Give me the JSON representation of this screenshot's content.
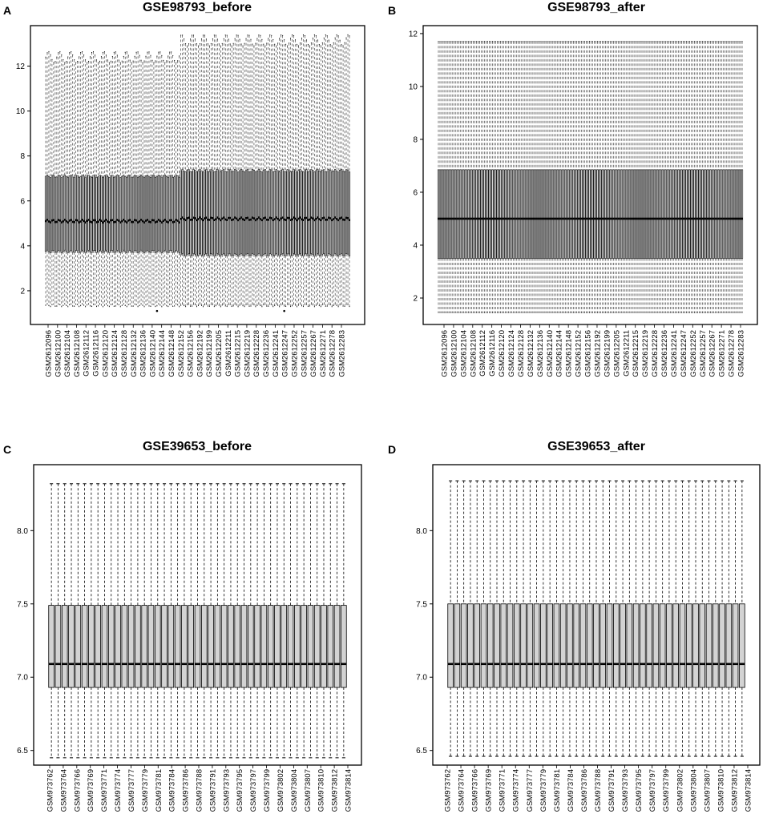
{
  "chart_data": [
    {
      "panel": "A",
      "type": "boxplot",
      "title": "GSE98793_before",
      "ylim": [
        0.5,
        13.8
      ],
      "yticks": [
        2,
        4,
        6,
        8,
        10,
        12
      ],
      "n_boxes": 192,
      "samples": [
        "GSM2612096",
        "GSM2612100",
        "GSM2612104",
        "GSM2612108",
        "GSM2612112",
        "GSM2612116",
        "GSM2612120",
        "GSM2612124",
        "GSM2612128",
        "GSM2612132",
        "GSM2612136",
        "GSM2612140",
        "GSM2612144",
        "GSM2612148",
        "GSM2612152",
        "GSM2612156",
        "GSM2612192",
        "GSM2612199",
        "GSM2612205",
        "GSM2612211",
        "GSM2612215",
        "GSM2612219",
        "GSM2612228",
        "GSM2612236",
        "GSM2612241",
        "GSM2612247",
        "GSM2612252",
        "GSM2612257",
        "GSM2612267",
        "GSM2612271",
        "GSM2612278",
        "GSM2612283"
      ],
      "shift_index": 85,
      "left_group": {
        "median": 5.1,
        "q1": 3.75,
        "q3": 7.1,
        "whisker_low": 1.35,
        "whisker_high": 12.4
      },
      "right_group": {
        "median": 5.2,
        "q1": 3.6,
        "q3": 7.35,
        "whisker_low": 1.35,
        "whisker_high": 13.15
      },
      "outlier_low": 1.1
    },
    {
      "panel": "B",
      "type": "boxplot",
      "title": "GSE98793_after",
      "ylim": [
        1.0,
        12.3
      ],
      "yticks": [
        2,
        4,
        6,
        8,
        10,
        12
      ],
      "n_boxes": 192,
      "samples": [
        "GSM2612096",
        "GSM2612100",
        "GSM2612104",
        "GSM2612108",
        "GSM2612112",
        "GSM2612116",
        "GSM2612120",
        "GSM2612124",
        "GSM2612128",
        "GSM2612132",
        "GSM2612136",
        "GSM2612140",
        "GSM2612144",
        "GSM2612148",
        "GSM2612152",
        "GSM2612156",
        "GSM2612192",
        "GSM2612199",
        "GSM2612205",
        "GSM2612211",
        "GSM2612215",
        "GSM2612219",
        "GSM2612228",
        "GSM2612236",
        "GSM2612241",
        "GSM2612247",
        "GSM2612252",
        "GSM2612257",
        "GSM2612267",
        "GSM2612271",
        "GSM2612278",
        "GSM2612283"
      ],
      "median": 5.0,
      "q1": 3.5,
      "q3": 6.85,
      "whisker_low": 1.45,
      "whisker_high": 11.7
    },
    {
      "panel": "C",
      "type": "boxplot",
      "title": "GSE39653_before",
      "ylim": [
        6.4,
        8.45
      ],
      "yticks": [
        6.5,
        7.0,
        7.5,
        8.0
      ],
      "samples": [
        "GSM973762",
        "GSM973764",
        "GSM973766",
        "GSM973769",
        "GSM973771",
        "GSM973774",
        "GSM973777",
        "GSM973779",
        "GSM973781",
        "GSM973784",
        "GSM973786",
        "GSM973788",
        "GSM973791",
        "GSM973793",
        "GSM973795",
        "GSM973797",
        "GSM973799",
        "GSM973802",
        "GSM973804",
        "GSM973807",
        "GSM973810",
        "GSM973812",
        "GSM973814"
      ],
      "n_boxes": 45,
      "median": 7.09,
      "q1": 6.93,
      "q3": 7.49,
      "whisker_low": 6.45,
      "whisker_high": 8.32
    },
    {
      "panel": "D",
      "type": "boxplot",
      "title": "GSE39653_after",
      "ylim": [
        6.4,
        8.45
      ],
      "yticks": [
        6.5,
        7.0,
        7.5,
        8.0
      ],
      "samples": [
        "GSM973762",
        "GSM973764",
        "GSM973766",
        "GSM973769",
        "GSM973771",
        "GSM973774",
        "GSM973777",
        "GSM973779",
        "GSM973781",
        "GSM973784",
        "GSM973786",
        "GSM973788",
        "GSM973791",
        "GSM973793",
        "GSM973795",
        "GSM973797",
        "GSM973799",
        "GSM973802",
        "GSM973804",
        "GSM973807",
        "GSM973810",
        "GSM973812",
        "GSM973814"
      ],
      "n_boxes": 45,
      "median": 7.09,
      "q1": 6.93,
      "q3": 7.5,
      "whisker_low": 6.46,
      "whisker_high": 8.34
    }
  ],
  "colors": {
    "box_fill": "#d3d3d3",
    "stroke": "#000000",
    "background": "#ffffff"
  }
}
